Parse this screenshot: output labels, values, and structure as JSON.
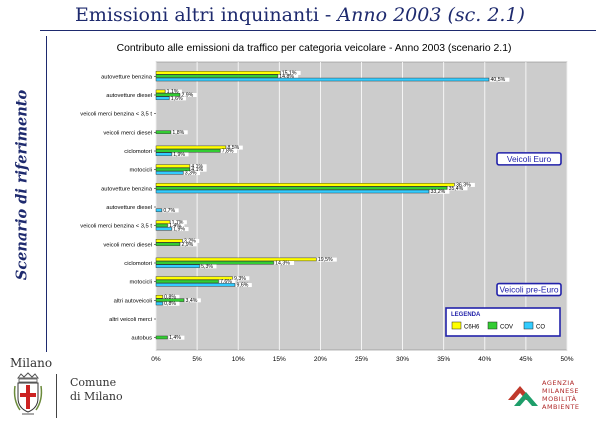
{
  "header": {
    "title_plain": "Emissioni altri inquinanti - ",
    "title_italic": "Anno 2003 (sc. 2.1)",
    "side_label": "Scenario di riferimento"
  },
  "footer": {
    "milano": "Milano",
    "comune_line1": "Comune",
    "comune_line2": "di Milano",
    "amma_line1": "AGENZIA",
    "amma_line2": "MILANESE",
    "amma_line3": "MOBILITÀ",
    "amma_line4": "AMBIENTE"
  },
  "colors": {
    "title": "#1e2a6e",
    "c6h6": "#ffff00",
    "cov": "#33cc33",
    "co": "#33ccff",
    "chart_bg": "#cccccc",
    "badge": "#2222aa"
  },
  "chart_data": {
    "type": "bar",
    "orientation": "horizontal",
    "title": "Contributo alle emissioni da traffico per categoria veicolare - Anno 2003 (scenario 2.1)",
    "xlabel": "",
    "ylabel": "",
    "xlim": [
      0,
      50
    ],
    "xticks": [
      "0%",
      "5%",
      "10%",
      "15%",
      "20%",
      "25%",
      "30%",
      "35%",
      "40%",
      "45%",
      "50%"
    ],
    "grid": true,
    "legend_position": "bottom-right",
    "legend": {
      "title": "LEGENDA",
      "entries": [
        {
          "name": "C6H6",
          "color": "#ffff00"
        },
        {
          "name": "COV",
          "color": "#33cc33"
        },
        {
          "name": "CO",
          "color": "#33ccff"
        }
      ]
    },
    "group_badges": [
      {
        "text": "Veicoli Euro"
      },
      {
        "text": "Veicoli pre-Euro"
      }
    ],
    "categories": [
      "autovetture benzina",
      "autovetture diesel",
      "veicoli merci benzina < 3,5 t",
      "veicoli merci diesel",
      "ciclomotori",
      "motocicli",
      "autovetture benzina",
      "autovetture diesel",
      "veicoli merci benzina < 3,5 t",
      "veicoli merci diesel",
      "ciclomotori",
      "motocicli",
      "altri autoveicoli",
      "altri veicoli merci",
      "autobus"
    ],
    "series": [
      {
        "name": "C6H6",
        "values": [
          15.1,
          1.1,
          null,
          null,
          8.5,
          4.1,
          36.3,
          null,
          1.7,
          3.2,
          19.5,
          9.3,
          0.8,
          null,
          null
        ]
      },
      {
        "name": "COV",
        "values": [
          14.8,
          2.9,
          null,
          1.8,
          7.8,
          4.1,
          35.4,
          null,
          1.4,
          2.9,
          14.3,
          7.6,
          3.4,
          null,
          1.4
        ]
      },
      {
        "name": "CO",
        "values": [
          40.5,
          1.6,
          null,
          null,
          1.9,
          3.3,
          33.2,
          0.7,
          1.9,
          null,
          5.3,
          9.6,
          0.8,
          null,
          null
        ]
      }
    ],
    "data_labels": [
      [
        "15,1%",
        "1,1%",
        "",
        "",
        "8,5%",
        "4,1%",
        "36,3%",
        "",
        "1,7%",
        "3,2%",
        "19,5%",
        "9,3%",
        "0,8%",
        "",
        ""
      ],
      [
        "14,8%",
        "2,9%",
        "",
        "1,8%",
        "7,8%",
        "4,1%",
        "35,4%",
        "",
        "1,4%",
        "2,9%",
        "14,3%",
        "7,6%",
        "3,4%",
        "",
        "1,4%"
      ],
      [
        "40,5%",
        "1,6%",
        "",
        "",
        "1,9%",
        "3,3%",
        "33,2%",
        "0,7%",
        "1,9%",
        "",
        "5,3%",
        "9,6%",
        "0,8%",
        "",
        ""
      ]
    ]
  }
}
